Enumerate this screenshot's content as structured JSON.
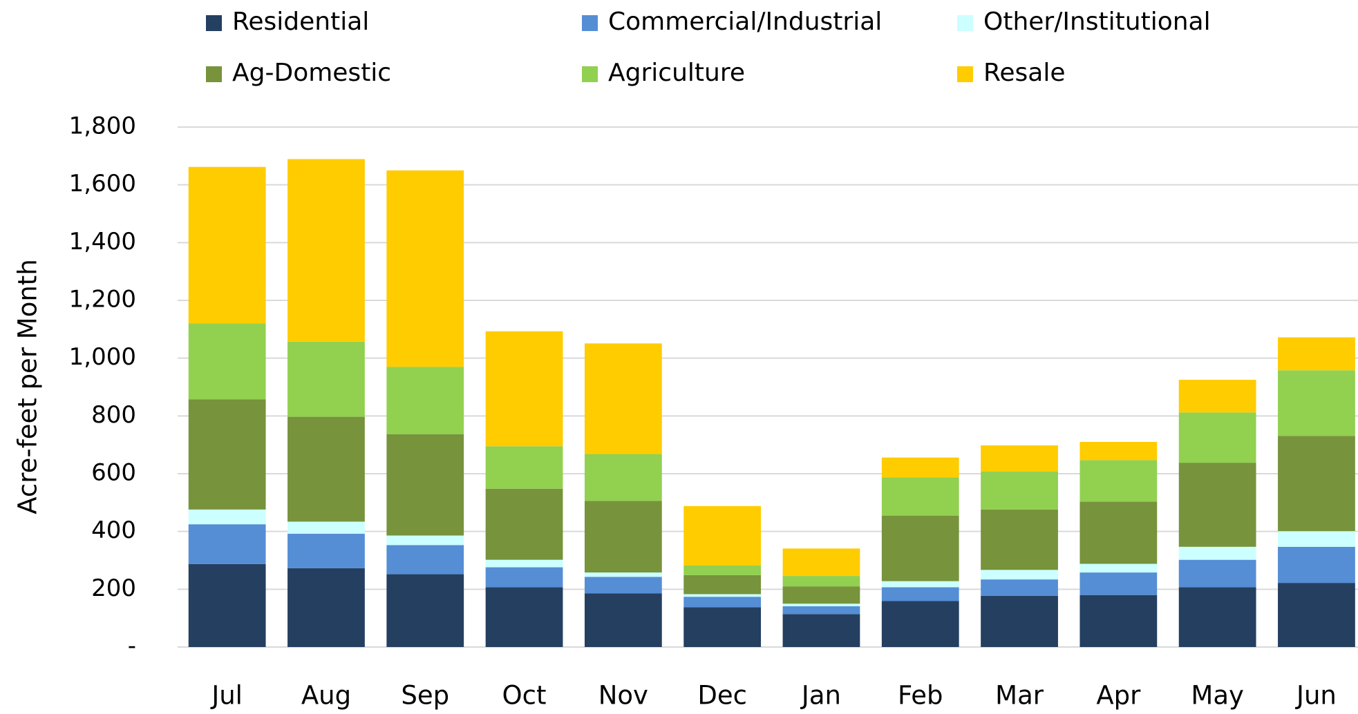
{
  "chart_data": {
    "type": "stacked_bar",
    "y_label": "Acre-feet per Month",
    "categories": [
      "Jul",
      "Aug",
      "Sep",
      "Oct",
      "Nov",
      "Dec",
      "Jan",
      "Feb",
      "Mar",
      "Apr",
      "May",
      "Jun"
    ],
    "series": [
      {
        "name": "Residential",
        "color": "#243f60",
        "values": [
          287,
          273,
          252,
          207,
          186,
          138,
          114,
          159,
          177,
          180,
          207,
          222
        ]
      },
      {
        "name": "Commercial/Industrial",
        "color": "#558ed5",
        "values": [
          138,
          119,
          101,
          69,
          57,
          36,
          27,
          48,
          57,
          78,
          95,
          125
        ]
      },
      {
        "name": "Other/Institutional",
        "color": "#ccffff",
        "values": [
          51,
          42,
          33,
          26,
          15,
          9,
          9,
          21,
          33,
          30,
          45,
          54
        ]
      },
      {
        "name": "Ag-Domestic",
        "color": "#77933c",
        "values": [
          381,
          363,
          351,
          246,
          248,
          66,
          60,
          227,
          209,
          215,
          291,
          330
        ]
      },
      {
        "name": "Agriculture",
        "color": "#92d050",
        "values": [
          263,
          260,
          233,
          147,
          162,
          33,
          36,
          132,
          132,
          144,
          174,
          227
        ]
      },
      {
        "name": "Resale",
        "color": "#ffcc00",
        "values": [
          542,
          632,
          680,
          398,
          383,
          206,
          95,
          69,
          90,
          63,
          113,
          114
        ]
      }
    ],
    "ylim": [
      0,
      1800
    ],
    "yticks": [
      {
        "value": 0,
        "label": "-"
      },
      200,
      400,
      600,
      800,
      {
        "value": 1000,
        "label": "1,000"
      },
      {
        "value": 1200,
        "label": "1,200"
      },
      {
        "value": 1400,
        "label": "1,400"
      },
      {
        "value": 1600,
        "label": "1,600"
      },
      {
        "value": 1800,
        "label": "1,800"
      }
    ],
    "grid": true
  }
}
